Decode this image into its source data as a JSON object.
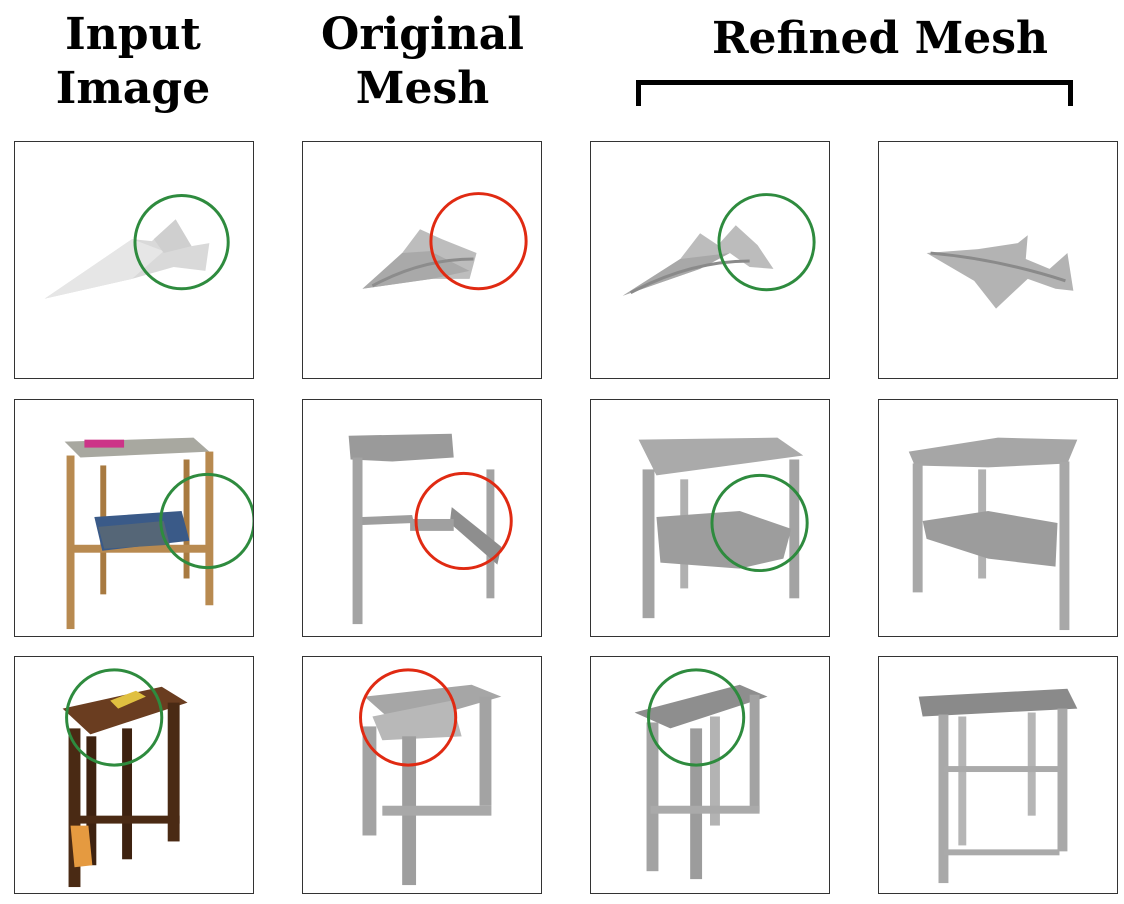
{
  "headers": {
    "input_image": [
      "Input",
      "Image"
    ],
    "original_mesh": [
      "Original",
      "Mesh"
    ],
    "refined_mesh": "Refined Mesh"
  },
  "colors": {
    "good_circle": "#2e8b3e",
    "bad_circle": "#e02a12",
    "mesh_gray": "#9a9a9a",
    "panel_border": "#333333"
  },
  "rows": [
    {
      "object": "paper-airplane",
      "input_marker": "good",
      "original_marker": "bad",
      "refined_marker": "good"
    },
    {
      "object": "side-table",
      "input_marker": "good",
      "original_marker": "bad",
      "refined_marker": "good"
    },
    {
      "object": "stool",
      "input_marker": "good",
      "original_marker": "bad",
      "refined_marker": "good"
    }
  ]
}
